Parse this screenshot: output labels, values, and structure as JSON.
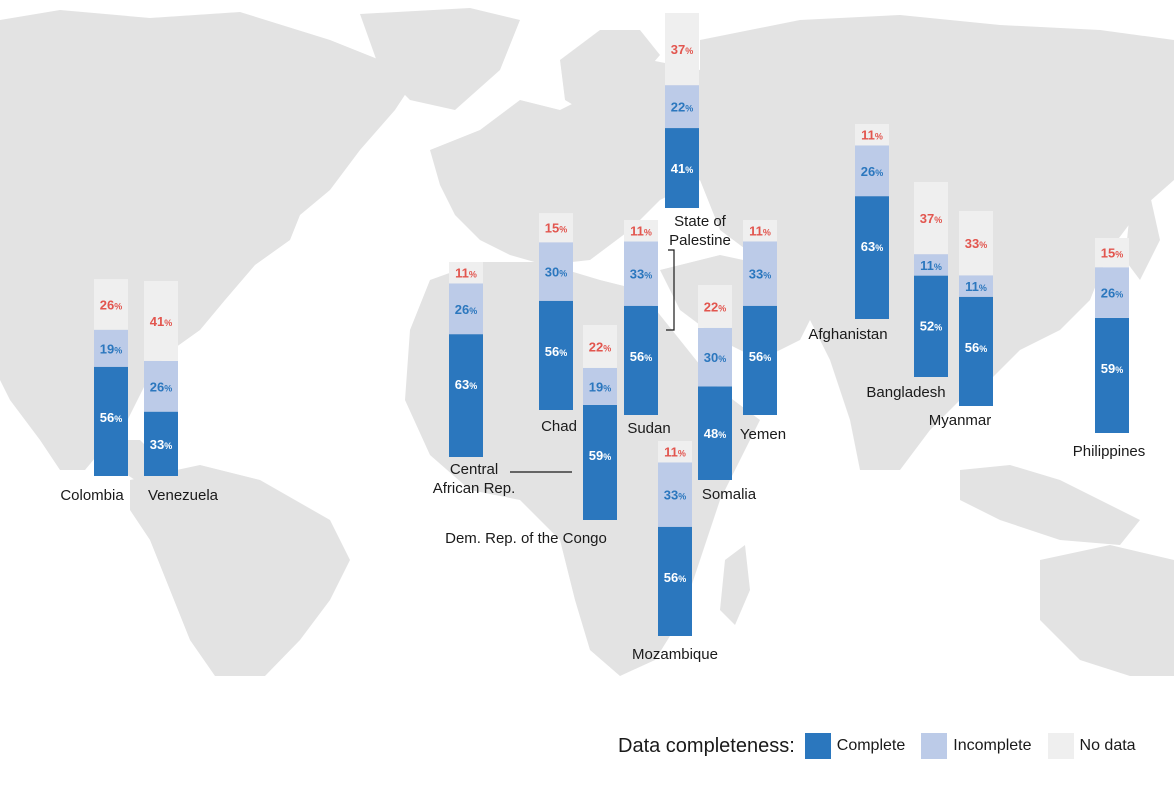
{
  "legend": {
    "title": "Data completeness:",
    "complete": "Complete",
    "incomplete": "Incomplete",
    "nodata": "No data"
  },
  "colors": {
    "complete": "#2b77be",
    "incomplete": "#bccbe8",
    "nodata": "#efefef",
    "complete_text": "#ffffff",
    "incomplete_text": "#2b77be",
    "nodata_text": "#e2554e",
    "map_land": "#e3e3e3"
  },
  "chart_data": {
    "type": "bar",
    "stacked": true,
    "series_order": [
      "Complete",
      "Incomplete",
      "No data"
    ],
    "categories": [
      "Colombia",
      "Venezuela",
      "Central African Rep.",
      "Chad",
      "Dem. Rep. of the Congo",
      "Sudan",
      "State of Palestine",
      "Mozambique",
      "Somalia",
      "Yemen",
      "Afghanistan",
      "Bangladesh",
      "Myanmar",
      "Philippines"
    ],
    "series": [
      {
        "name": "Complete",
        "values": [
          56,
          33,
          63,
          56,
          59,
          56,
          41,
          56,
          48,
          56,
          63,
          52,
          56,
          59
        ]
      },
      {
        "name": "Incomplete",
        "values": [
          19,
          26,
          26,
          30,
          19,
          33,
          22,
          33,
          30,
          33,
          26,
          11,
          11,
          26
        ]
      },
      {
        "name": "No data",
        "values": [
          26,
          41,
          11,
          15,
          22,
          11,
          37,
          11,
          22,
          11,
          11,
          37,
          33,
          15
        ]
      }
    ],
    "percent_sign": "%",
    "axes": "none",
    "background": "world map",
    "legend_position": "bottom-right"
  }
}
